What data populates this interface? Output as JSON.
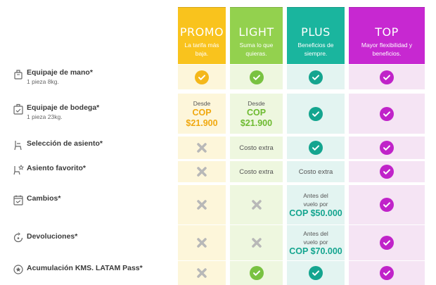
{
  "plans": [
    {
      "name": "PROMO",
      "desc_line1": "La tarifa más",
      "desc_line2": "baja.",
      "color": "#f9c31d"
    },
    {
      "name": "LIGHT",
      "desc_line1": "Suma lo que",
      "desc_line2": "quieras.",
      "color": "#93d14e"
    },
    {
      "name": "PLUS",
      "desc_line1": "Beneficios de",
      "desc_line2": "siempre.",
      "color": "#1ab59e"
    },
    {
      "name": "TOP",
      "desc_line1": "Mayor flexibilidad y",
      "desc_line2": "beneficios.",
      "color": "#c728d1"
    }
  ],
  "features": [
    {
      "label": "Equipaje de mano*",
      "sub": "1 pieza 8kg.",
      "icon": "hand-luggage-icon"
    },
    {
      "label": "Equipaje de bodega*",
      "sub": "1 pieza 23kg.",
      "icon": "checked-luggage-icon"
    },
    {
      "label": "Selección de asiento*",
      "sub": "",
      "icon": "seat-icon"
    },
    {
      "label": "Asiento favorito*",
      "sub": "",
      "icon": "favorite-seat-icon"
    },
    {
      "label": "Cambios*",
      "sub": "",
      "icon": "calendar-icon"
    },
    {
      "label": "Devoluciones*",
      "sub": "",
      "icon": "refund-icon"
    },
    {
      "label": "Acumulación KMS. LATAM Pass*",
      "sub": "",
      "icon": "latam-pass-icon"
    }
  ],
  "cells": {
    "bodega_promo": {
      "prefix": "Desde",
      "currency": "COP",
      "amount": "$21.900"
    },
    "bodega_light": {
      "prefix": "Desde",
      "currency": "COP",
      "amount": "$21.900"
    },
    "seat_light": "Costo extra",
    "fav_light": "Costo extra",
    "fav_plus": "Costo extra",
    "cambios_plus": {
      "line1": "Antes del",
      "line2": "vuelo por",
      "price": "COP $50.000"
    },
    "devol_plus": {
      "line1": "Antes del",
      "line2": "vuelo por",
      "price": "COP $70.000"
    }
  }
}
